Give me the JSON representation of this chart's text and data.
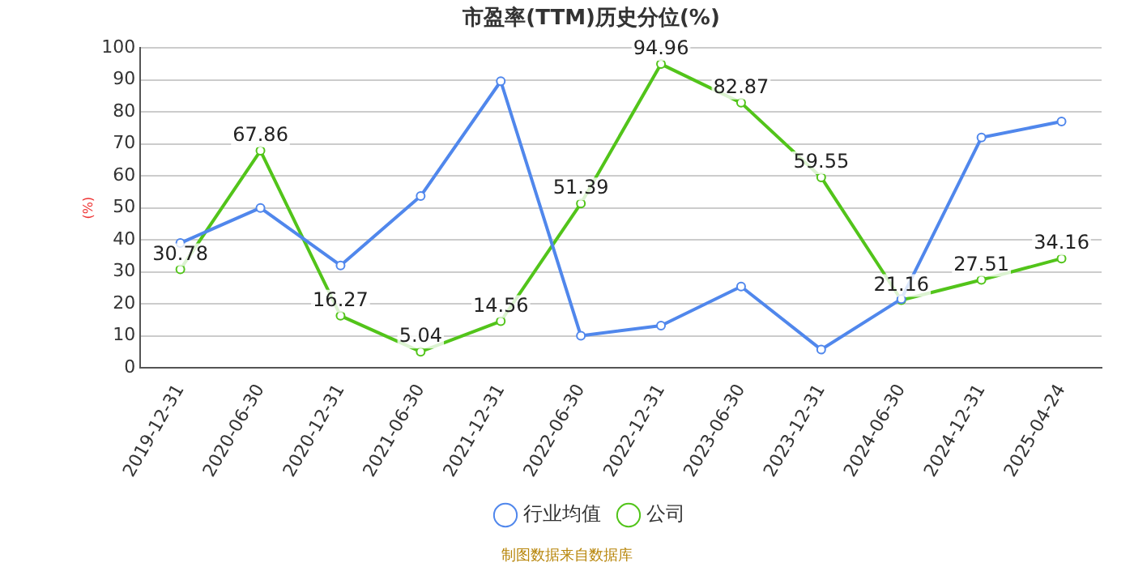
{
  "chart_data": {
    "type": "line",
    "title": "市盈率(TTM)历史分位(%)",
    "ylabel": "(%)",
    "categories": [
      "2019-12-31",
      "2020-06-30",
      "2020-12-31",
      "2021-06-30",
      "2021-12-31",
      "2022-06-30",
      "2022-12-31",
      "2023-06-30",
      "2023-12-31",
      "2024-06-30",
      "2024-12-31",
      "2025-04-24"
    ],
    "series": [
      {
        "name": "公司",
        "color": "#52c41a",
        "values": [
          30.78,
          67.86,
          16.27,
          5.04,
          14.56,
          51.39,
          94.96,
          82.87,
          59.55,
          21.16,
          27.51,
          34.16
        ],
        "value_labels": [
          "30.78",
          "67.86",
          "16.27",
          "5.04",
          "14.56",
          "51.39",
          "94.96",
          "82.87",
          "59.55",
          "21.16",
          "27.51",
          "34.16"
        ]
      },
      {
        "name": "行业均值",
        "color": "#5087ec",
        "values": [
          39,
          50,
          32,
          53.7,
          89.6,
          10,
          13.2,
          25.4,
          5.7,
          21.5,
          72,
          77
        ]
      }
    ],
    "ylim": [
      0,
      100
    ],
    "yticks": [
      0,
      10,
      20,
      30,
      40,
      50,
      60,
      70,
      80,
      90,
      100
    ],
    "grid": "y",
    "legend": "bottom",
    "marker": "circle",
    "line_style": "solid",
    "annotations": [
      "制图数据来自数据库"
    ]
  }
}
